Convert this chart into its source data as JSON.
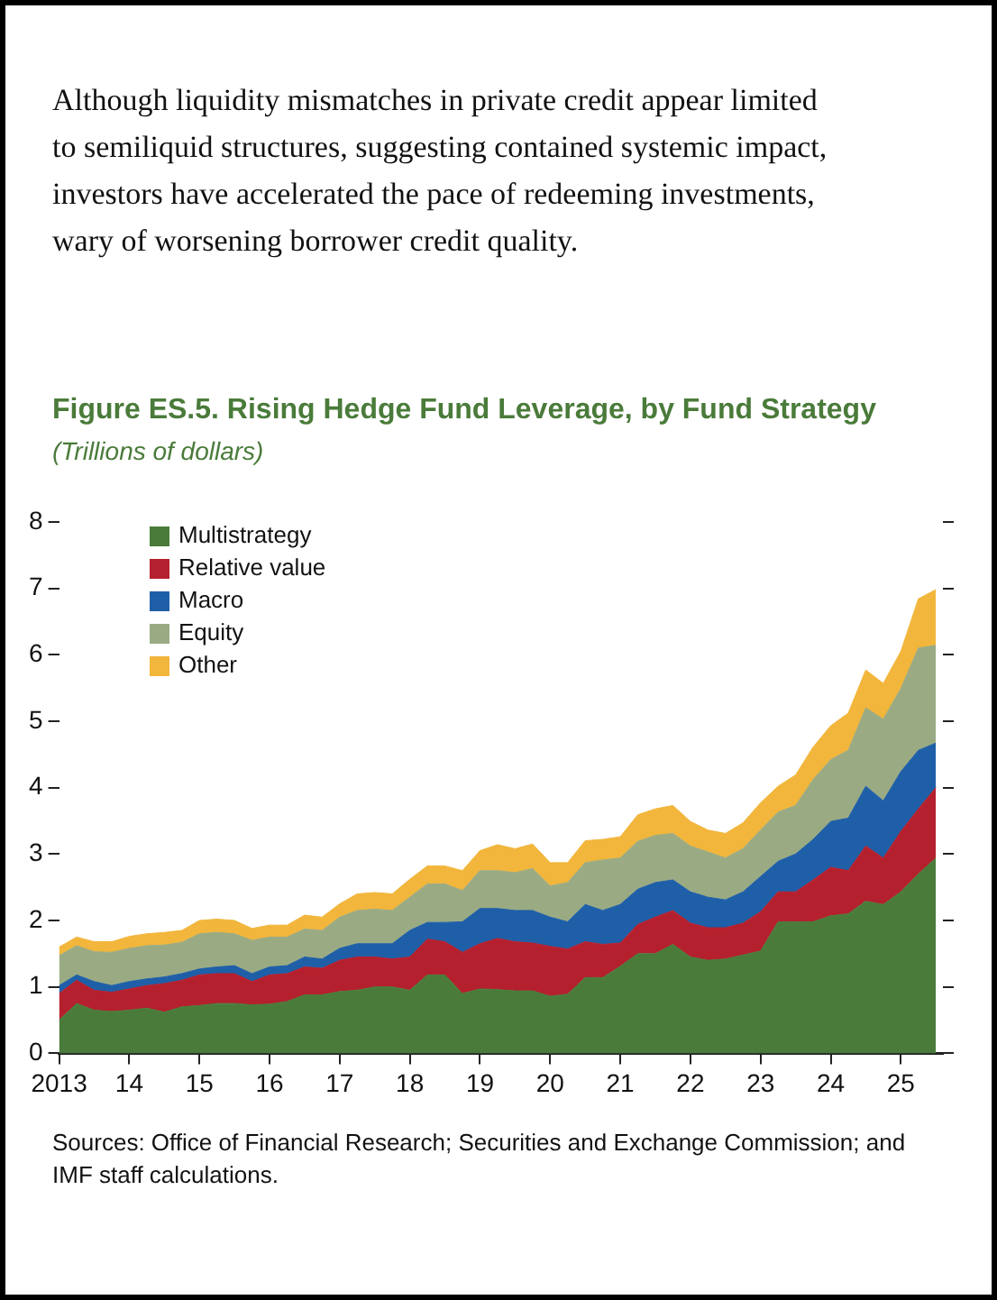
{
  "chart_data": {
    "type": "area",
    "title": "Figure ES.5. Rising Hedge Fund Leverage, by Fund Strategy",
    "subtitle": "(Trillions of dollars)",
    "annotations": [
      "Although liquidity mismatches in private credit appear limited to semiliquid structures, suggesting contained systemic impact, investors have accelerated the pace of redeeming investments, wary of worsening borrower credit quality.",
      "Sources: Office of Financial Research; Securities and Exchange Commission; and IMF staff calculations."
    ],
    "x": [
      2013,
      2013.25,
      2013.5,
      2013.75,
      2014,
      2014.25,
      2014.5,
      2014.75,
      2015,
      2015.25,
      2015.5,
      2015.75,
      2016,
      2016.25,
      2016.5,
      2016.75,
      2017,
      2017.25,
      2017.5,
      2017.75,
      2018,
      2018.25,
      2018.5,
      2018.75,
      2019,
      2019.25,
      2019.5,
      2019.75,
      2020,
      2020.25,
      2020.5,
      2020.75,
      2021,
      2021.25,
      2021.5,
      2021.75,
      2022,
      2022.25,
      2022.5,
      2022.75,
      2023,
      2023.25,
      2023.5,
      2023.75,
      2024,
      2024.25,
      2024.5,
      2024.75,
      2025,
      2025.25,
      2025.5
    ],
    "stacked": true,
    "series": [
      {
        "name": "Multistrategy",
        "color": "#4a7b3a",
        "values": [
          0.5,
          0.75,
          0.65,
          0.63,
          0.65,
          0.68,
          0.62,
          0.7,
          0.72,
          0.75,
          0.75,
          0.73,
          0.74,
          0.78,
          0.88,
          0.88,
          0.93,
          0.95,
          1.0,
          1.0,
          0.95,
          1.18,
          1.18,
          0.9,
          0.97,
          0.96,
          0.94,
          0.94,
          0.86,
          0.89,
          1.14,
          1.14,
          1.31,
          1.5,
          1.5,
          1.64,
          1.45,
          1.4,
          1.42,
          1.48,
          1.54,
          1.98,
          1.98,
          1.98,
          2.07,
          2.1,
          2.29,
          2.24,
          2.43,
          2.7,
          2.94
        ]
      },
      {
        "name": "Relative value",
        "color": "#b5202e",
        "values": [
          0.4,
          0.35,
          0.3,
          0.29,
          0.32,
          0.34,
          0.43,
          0.4,
          0.46,
          0.45,
          0.45,
          0.35,
          0.44,
          0.42,
          0.42,
          0.4,
          0.47,
          0.5,
          0.45,
          0.42,
          0.5,
          0.54,
          0.5,
          0.62,
          0.68,
          0.77,
          0.74,
          0.72,
          0.75,
          0.68,
          0.54,
          0.5,
          0.35,
          0.44,
          0.55,
          0.51,
          0.51,
          0.49,
          0.47,
          0.48,
          0.59,
          0.45,
          0.45,
          0.63,
          0.73,
          0.65,
          0.83,
          0.7,
          0.91,
          0.98,
          1.06
        ]
      },
      {
        "name": "Macro",
        "color": "#1f5fa8",
        "values": [
          0.12,
          0.08,
          0.13,
          0.1,
          0.11,
          0.1,
          0.1,
          0.1,
          0.09,
          0.1,
          0.12,
          0.12,
          0.12,
          0.12,
          0.15,
          0.14,
          0.18,
          0.2,
          0.2,
          0.23,
          0.4,
          0.25,
          0.29,
          0.46,
          0.53,
          0.45,
          0.47,
          0.49,
          0.44,
          0.41,
          0.56,
          0.51,
          0.58,
          0.53,
          0.52,
          0.46,
          0.47,
          0.46,
          0.42,
          0.47,
          0.53,
          0.46,
          0.57,
          0.61,
          0.69,
          0.79,
          0.9,
          0.86,
          0.9,
          0.88,
          0.67
        ]
      },
      {
        "name": "Equity",
        "color": "#9aab84",
        "values": [
          0.45,
          0.44,
          0.45,
          0.5,
          0.5,
          0.5,
          0.48,
          0.47,
          0.53,
          0.52,
          0.48,
          0.5,
          0.45,
          0.43,
          0.42,
          0.43,
          0.47,
          0.5,
          0.52,
          0.5,
          0.5,
          0.58,
          0.58,
          0.47,
          0.57,
          0.57,
          0.57,
          0.63,
          0.47,
          0.59,
          0.63,
          0.76,
          0.7,
          0.72,
          0.71,
          0.7,
          0.69,
          0.68,
          0.63,
          0.65,
          0.7,
          0.74,
          0.73,
          0.9,
          0.93,
          1.02,
          1.18,
          1.23,
          1.25,
          1.54,
          1.47
        ]
      },
      {
        "name": "Other",
        "color": "#f2b63c",
        "values": [
          0.13,
          0.13,
          0.15,
          0.16,
          0.18,
          0.18,
          0.19,
          0.18,
          0.2,
          0.2,
          0.2,
          0.18,
          0.18,
          0.18,
          0.21,
          0.2,
          0.2,
          0.25,
          0.25,
          0.25,
          0.27,
          0.27,
          0.27,
          0.3,
          0.3,
          0.39,
          0.36,
          0.37,
          0.35,
          0.3,
          0.33,
          0.31,
          0.32,
          0.4,
          0.4,
          0.42,
          0.37,
          0.33,
          0.37,
          0.39,
          0.41,
          0.39,
          0.46,
          0.49,
          0.51,
          0.56,
          0.57,
          0.54,
          0.56,
          0.74,
          0.84
        ]
      }
    ],
    "xlim": [
      2013,
      2025.6
    ],
    "xticks": [
      {
        "value": 2013,
        "label": "2013"
      },
      {
        "value": 2014,
        "label": "14"
      },
      {
        "value": 2015,
        "label": "15"
      },
      {
        "value": 2016,
        "label": "16"
      },
      {
        "value": 2017,
        "label": "17"
      },
      {
        "value": 2018,
        "label": "18"
      },
      {
        "value": 2019,
        "label": "19"
      },
      {
        "value": 2020,
        "label": "20"
      },
      {
        "value": 2021,
        "label": "21"
      },
      {
        "value": 2022,
        "label": "22"
      },
      {
        "value": 2023,
        "label": "23"
      },
      {
        "value": 2024,
        "label": "24"
      },
      {
        "value": 2025,
        "label": "25"
      }
    ],
    "ylim": [
      0,
      8
    ],
    "yticks": [
      0,
      1,
      2,
      3,
      4,
      5,
      6,
      7,
      8
    ],
    "grid": false,
    "legend": "top left"
  }
}
